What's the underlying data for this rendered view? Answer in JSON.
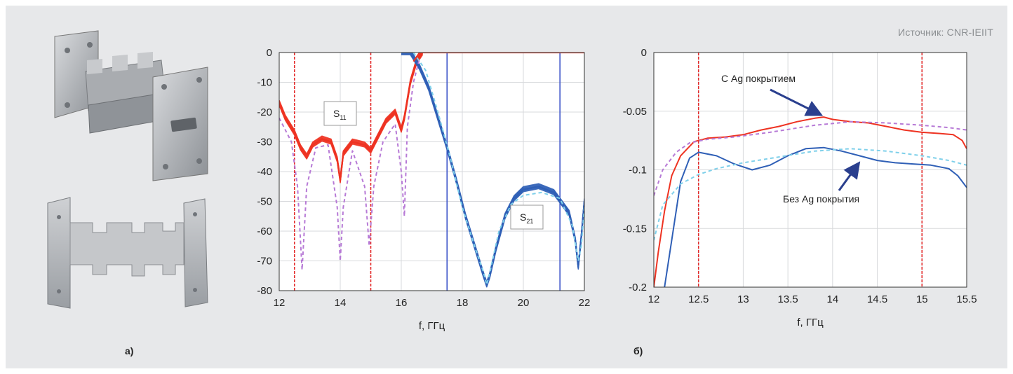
{
  "source": "Источник: CNR-IEIIT",
  "panel_labels": {
    "a": "а)",
    "b": "б)"
  },
  "colors": {
    "red": "#ee3322",
    "blue": "#2f5fb6",
    "purple_dash": "#b77ad6",
    "cyan_dash": "#7fd0ea",
    "red_marker": "#e32a2a",
    "blue_marker": "#3a52c8"
  },
  "photo_icons": [
    "waveguide-filter-3d-photo",
    "waveguide-filter-cutaway-photo"
  ],
  "chart_data": [
    {
      "type": "line",
      "xlabel": "f, ГГц",
      "ylabel": "",
      "xlim": [
        12,
        22
      ],
      "ylim": [
        -80,
        0
      ],
      "xticks": [
        12,
        14,
        16,
        18,
        20,
        22
      ],
      "yticks": [
        0,
        -10,
        -20,
        -30,
        -40,
        -50,
        -60,
        -70,
        -80
      ],
      "grid": true,
      "vertical_markers": [
        {
          "x": 12.5,
          "color": "red"
        },
        {
          "x": 15.0,
          "color": "red"
        },
        {
          "x": 17.5,
          "color": "blue"
        },
        {
          "x": 21.2,
          "color": "blue"
        }
      ],
      "annotations": [
        {
          "main": "S",
          "sub": "11"
        },
        {
          "main": "S",
          "sub": "21"
        }
      ],
      "series": [
        {
          "color": "red",
          "band_width": 4,
          "x": [
            12.0,
            12.2,
            12.5,
            12.7,
            12.9,
            13.1,
            13.4,
            13.7,
            13.9,
            14.0,
            14.1,
            14.4,
            14.8,
            15.0,
            15.2,
            15.5,
            15.8,
            16.0,
            16.1,
            16.3,
            16.5,
            16.7
          ],
          "y": [
            -17,
            -22,
            -27,
            -32,
            -35,
            -31,
            -29,
            -30,
            -36,
            -43,
            -34,
            -30,
            -31,
            -33,
            -29,
            -23,
            -20,
            -26,
            -22,
            -10,
            -3,
            0
          ]
        },
        {
          "color": "blue",
          "band_width": 4,
          "x": [
            16.0,
            16.3,
            16.6,
            16.9,
            17.2,
            17.5,
            17.8,
            18.1,
            18.4,
            18.7,
            18.8,
            18.9,
            19.1,
            19.4,
            19.7,
            20.0,
            20.5,
            21.0,
            21.5,
            21.7,
            21.8,
            21.9,
            22.0
          ],
          "y": [
            0,
            0,
            -5,
            -12,
            -22,
            -32,
            -43,
            -55,
            -65,
            -75,
            -78,
            -75,
            -66,
            -55,
            -49,
            -46,
            -45,
            -47,
            -54,
            -63,
            -72,
            -62,
            -50
          ]
        },
        {
          "color": "red",
          "band_width": 0,
          "x": [
            16.4,
            16.6,
            16.8,
            17.0,
            18.0,
            20.0,
            22.0
          ],
          "y": [
            -3,
            0,
            0,
            0,
            0,
            0,
            0
          ]
        },
        {
          "color": "purple_dash",
          "dashed": true,
          "x": [
            12.0,
            12.4,
            12.6,
            12.75,
            12.9,
            13.2,
            13.6,
            13.9,
            14.0,
            14.1,
            14.4,
            14.8,
            14.95,
            15.1,
            15.4,
            15.8,
            16.0,
            16.1,
            16.2,
            16.4,
            16.6
          ],
          "y": [
            -22,
            -30,
            -45,
            -73,
            -45,
            -32,
            -31,
            -52,
            -70,
            -52,
            -33,
            -45,
            -65,
            -45,
            -30,
            -24,
            -40,
            -55,
            -25,
            -10,
            -2
          ]
        },
        {
          "color": "cyan_dash",
          "dashed": true,
          "x": [
            16.4,
            16.8,
            17.2,
            17.6,
            18.0,
            18.4,
            18.7,
            18.8,
            18.9,
            19.2,
            19.6,
            20.0,
            20.6,
            21.2,
            21.6,
            21.8,
            21.9,
            22.0
          ],
          "y": [
            0,
            -6,
            -20,
            -35,
            -52,
            -65,
            -74,
            -78,
            -74,
            -60,
            -51,
            -48,
            -47,
            -49,
            -58,
            -70,
            -65,
            -52
          ]
        }
      ]
    },
    {
      "type": "line",
      "xlabel": "f, ГГц",
      "ylabel": "",
      "xlim": [
        12,
        15.5
      ],
      "ylim": [
        -0.2,
        0
      ],
      "xticks": [
        12,
        12.5,
        13,
        13.5,
        14,
        14.5,
        15,
        15.5
      ],
      "yticks": [
        0,
        -0.05,
        -0.1,
        -0.15,
        -0.2
      ],
      "ytick_labels": [
        "0",
        "-0.05",
        "-0.1",
        "-0.15",
        "-0.2"
      ],
      "grid": true,
      "vertical_markers": [
        {
          "x": 12.5,
          "color": "red"
        },
        {
          "x": 15.0,
          "color": "red"
        }
      ],
      "annotations": [
        {
          "text": "С Ag покрытием",
          "arrow_to": [
            13.85,
            -0.056
          ]
        },
        {
          "text": "Без Ag покрытия",
          "arrow_to": [
            14.25,
            -0.092
          ]
        }
      ],
      "series": [
        {
          "color": "red",
          "x": [
            12.0,
            12.05,
            12.12,
            12.2,
            12.3,
            12.45,
            12.6,
            12.8,
            13.0,
            13.2,
            13.4,
            13.6,
            13.8,
            13.9,
            14.0,
            14.2,
            14.4,
            14.6,
            14.8,
            15.0,
            15.2,
            15.35,
            15.45,
            15.5
          ],
          "y": [
            -0.2,
            -0.17,
            -0.135,
            -0.105,
            -0.088,
            -0.076,
            -0.073,
            -0.072,
            -0.07,
            -0.066,
            -0.063,
            -0.059,
            -0.056,
            -0.055,
            -0.057,
            -0.059,
            -0.06,
            -0.063,
            -0.066,
            -0.068,
            -0.069,
            -0.07,
            -0.075,
            -0.082
          ]
        },
        {
          "color": "blue",
          "x": [
            12.0,
            12.1,
            12.2,
            12.3,
            12.4,
            12.5,
            12.7,
            12.9,
            13.1,
            13.3,
            13.5,
            13.7,
            13.9,
            14.1,
            14.3,
            14.5,
            14.7,
            14.9,
            15.1,
            15.3,
            15.4,
            15.5
          ],
          "y": [
            -0.24,
            -0.21,
            -0.16,
            -0.11,
            -0.09,
            -0.085,
            -0.088,
            -0.095,
            -0.1,
            -0.096,
            -0.088,
            -0.082,
            -0.081,
            -0.084,
            -0.088,
            -0.092,
            -0.094,
            -0.095,
            -0.096,
            -0.099,
            -0.105,
            -0.115
          ]
        },
        {
          "color": "purple_dash",
          "dashed": true,
          "x": [
            12.0,
            12.1,
            12.25,
            12.4,
            12.6,
            12.9,
            13.3,
            13.8,
            14.2,
            14.6,
            15.0,
            15.3,
            15.5
          ],
          "y": [
            -0.122,
            -0.1,
            -0.085,
            -0.077,
            -0.074,
            -0.072,
            -0.068,
            -0.062,
            -0.059,
            -0.06,
            -0.062,
            -0.064,
            -0.066
          ]
        },
        {
          "color": "cyan_dash",
          "dashed": true,
          "x": [
            12.0,
            12.1,
            12.3,
            12.5,
            12.7,
            13.0,
            13.4,
            13.8,
            14.2,
            14.6,
            15.0,
            15.3,
            15.5
          ],
          "y": [
            -0.16,
            -0.13,
            -0.112,
            -0.104,
            -0.099,
            -0.094,
            -0.089,
            -0.084,
            -0.082,
            -0.084,
            -0.088,
            -0.092,
            -0.096
          ]
        }
      ]
    }
  ]
}
